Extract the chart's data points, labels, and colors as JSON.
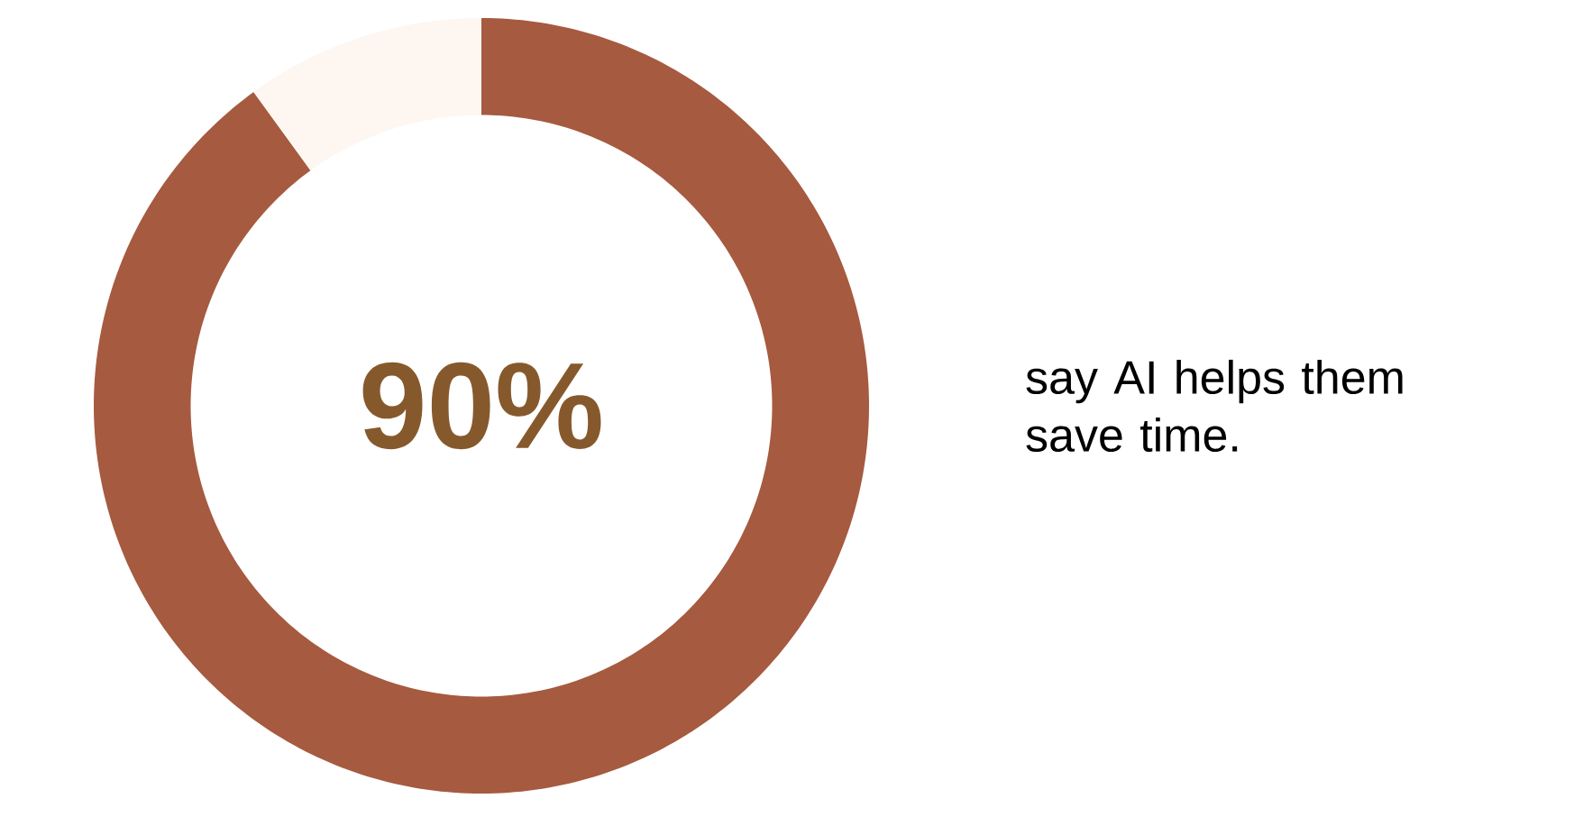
{
  "chart_data": {
    "type": "donut",
    "categories": [
      null,
      null
    ],
    "values": [
      90,
      10
    ],
    "colors": [
      "#a65a3f",
      "#fdf6f1"
    ],
    "value_labels": [
      "90%",
      null
    ],
    "annotations": [
      "say AI helps them save time."
    ]
  }
}
